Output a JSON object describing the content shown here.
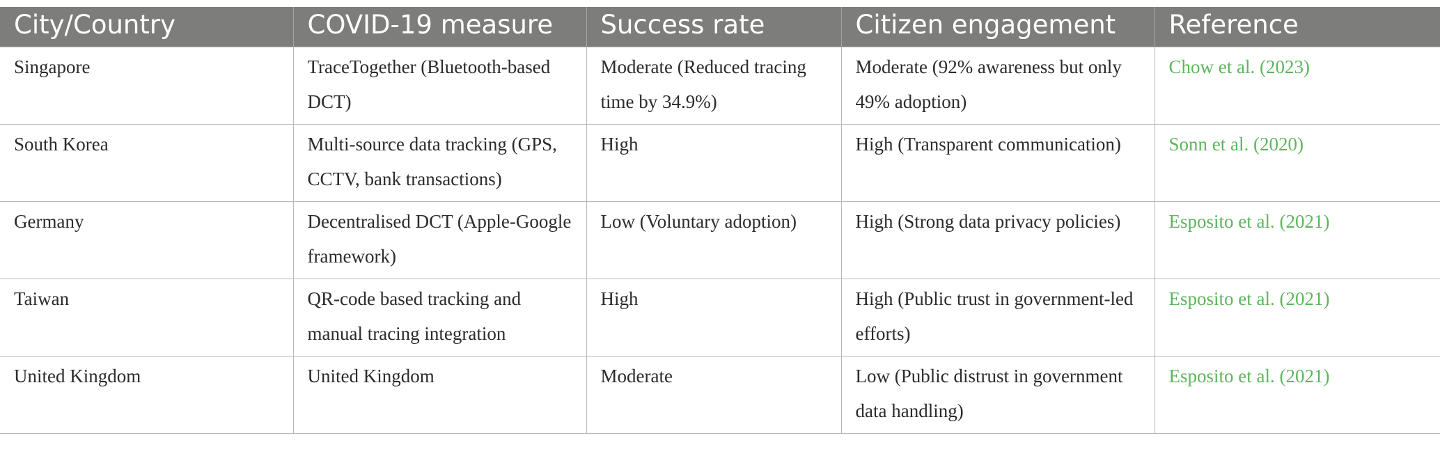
{
  "table": {
    "headers": [
      "City/Country",
      "COVID-19 measure",
      "Success rate",
      "Citizen engagement",
      "Reference"
    ],
    "rows": [
      {
        "country": "Singapore",
        "measure": "TraceTogether (Bluetooth-based DCT)",
        "success": "Moderate (Reduced tracing time by 34.9%)",
        "engagement": "Moderate (92% awareness but only 49% adoption)",
        "reference": "Chow et al. (2023)"
      },
      {
        "country": "South Korea",
        "measure": "Multi-source data tracking (GPS, CCTV, bank transactions)",
        "success": "High",
        "engagement": "High (Transparent communication)",
        "reference": "Sonn et al. (2020)"
      },
      {
        "country": "Germany",
        "measure": "Decentralised DCT (Apple-Google framework)",
        "success": "Low (Voluntary adoption)",
        "engagement": "High (Strong data privacy policies)",
        "reference": "Esposito et al. (2021)"
      },
      {
        "country": "Taiwan",
        "measure": "QR-code based tracking and manual tracing integration",
        "success": "High",
        "engagement": "High (Public trust in government-led efforts)",
        "reference": "Esposito et al. (2021)"
      },
      {
        "country": "United Kingdom",
        "measure": "United Kingdom",
        "success": "Moderate",
        "engagement": "Low (Public distrust in government data handling)",
        "reference": "Esposito et al. (2021)"
      }
    ]
  },
  "colors": {
    "header_bg": "#7d7e7c",
    "header_text": "#ffffff",
    "reference_link": "#5db65d",
    "border": "#b8b8b8"
  }
}
